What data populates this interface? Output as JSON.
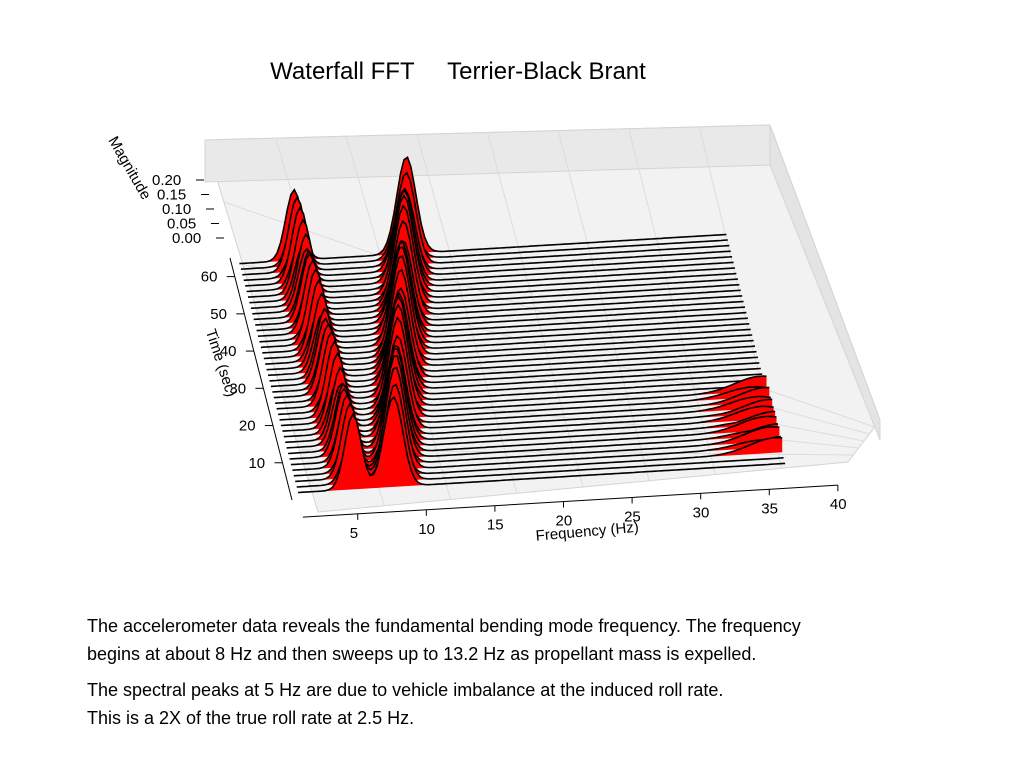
{
  "slide": {
    "title": "Waterfall FFT     Terrier-Black Brant",
    "paragraph1": [
      "The accelerometer data reveals the fundamental bending mode frequency.  The frequency",
      "begins at about 8 Hz and then sweeps up to 13.2 Hz as propellant mass is expelled."
    ],
    "paragraph2": [
      "The spectral peaks at 5 Hz are due to vehicle imbalance at the induced roll rate.",
      "This is a 2X of the true roll rate at 2.5 Hz."
    ]
  },
  "chart_data": {
    "type": "waterfall-3d",
    "title": "",
    "xlabel": "Frequency (Hz)",
    "ylabel": "Time (sec)",
    "zlabel": "Magnitude",
    "xlim": [
      1,
      40
    ],
    "ylim": [
      0,
      65
    ],
    "zlim": [
      0,
      0.2
    ],
    "xticks": [
      "5",
      "10",
      "15",
      "20",
      "25",
      "30",
      "35",
      "40"
    ],
    "yticks": [
      "10",
      "20",
      "30",
      "40",
      "50",
      "60"
    ],
    "zticks": [
      "0.00",
      "0.05",
      "0.10",
      "0.15",
      "0.20"
    ],
    "time_start": 2,
    "time_step": 1.5,
    "slice_count": 42,
    "fill_color": "#ff0000",
    "line_color": "#000000",
    "peaks": [
      {
        "name": "roll-imbalance",
        "freq": 5,
        "t_start": 2,
        "t_end": 64,
        "amp_start": 0.1,
        "amp_end": 0.1,
        "width": 0.6
      },
      {
        "name": "bending-mode",
        "freq_start": 8,
        "freq_end": 13.2,
        "t_start": 2,
        "t_end": 64,
        "amp_start": 0.14,
        "amp_end": 0.13,
        "width": 0.7
      },
      {
        "name": "high-frequency",
        "freq": 36,
        "t_start": 5,
        "t_end": 22,
        "amp_start": 0.02,
        "amp_end": 0.02,
        "width": 2.0
      }
    ]
  }
}
